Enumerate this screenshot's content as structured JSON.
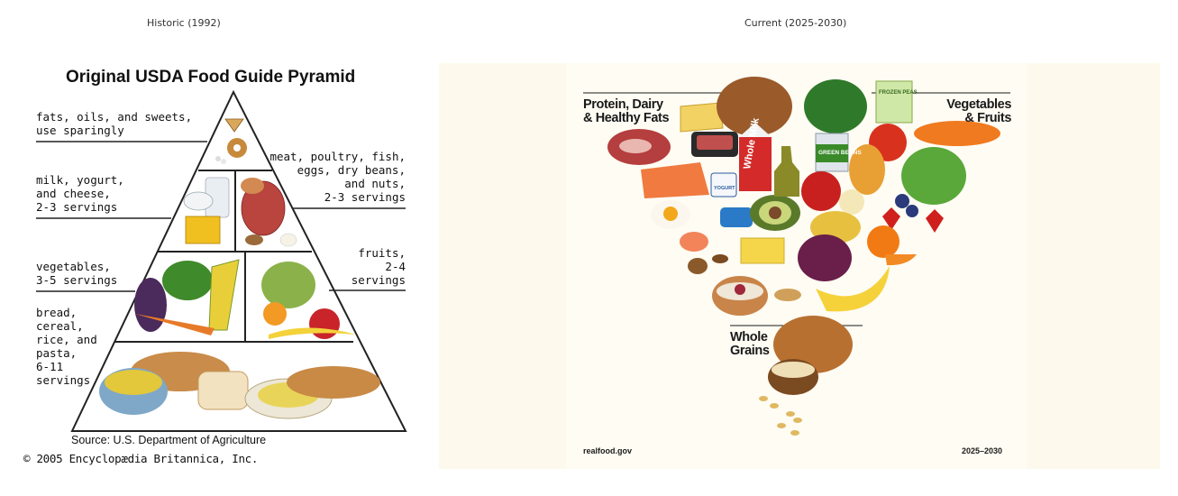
{
  "panels": {
    "left_label": "Historic (1992)",
    "right_label": "Current (2025-2030)"
  },
  "historic": {
    "title": "Original USDA Food Guide Pyramid",
    "tiers": {
      "fats": "fats, oils, and sweets,\nuse sparingly",
      "milk": "milk, yogurt,\nand cheese,\n2-3 servings",
      "meat": "meat, poultry, fish,\neggs, dry beans,\nand nuts,\n2-3 servings",
      "vegetables": "vegetables,\n3-5 servings",
      "fruits": "fruits,\n2-4\nservings",
      "grains": "bread,\ncereal,\nrice, and\npasta,\n6-11\nservings"
    },
    "source": "Source: U.S. Department of Agriculture",
    "copyright": "© 2005 Encyclopædia Britannica, Inc."
  },
  "current": {
    "protein_heading": "Protein, Dairy\n& Healthy Fats",
    "veg_heading": "Vegetables\n& Fruits",
    "grains_heading": "Whole\nGrains",
    "milk_label": "Whole Milk",
    "beans_label": "GREEN BEANS",
    "peas_label": "FROZEN PEAS",
    "yogurt_label": "YOGURT",
    "site": "realfood.gov",
    "years": "2025–2030"
  },
  "colors": {
    "pyramid_stroke": "#222222",
    "right_bg": "#fdf9ec",
    "heading": "#1a1a1a"
  }
}
